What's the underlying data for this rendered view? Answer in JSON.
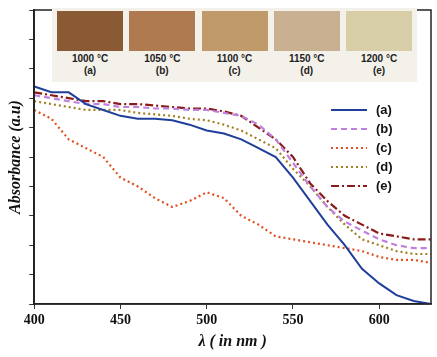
{
  "chart_data": {
    "type": "line",
    "x_label": "λ ( in nm )",
    "y_label": "Absorbance (a.u)",
    "x": [
      400,
      410,
      420,
      430,
      440,
      450,
      460,
      470,
      480,
      490,
      500,
      510,
      520,
      530,
      540,
      550,
      560,
      570,
      580,
      590,
      600,
      610,
      620,
      630
    ],
    "series": [
      {
        "name": "(a)",
        "color": "#1f3f9a",
        "line_style": "solid",
        "values": [
          0.74,
          0.72,
          0.72,
          0.68,
          0.66,
          0.64,
          0.63,
          0.63,
          0.625,
          0.61,
          0.59,
          0.58,
          0.56,
          0.53,
          0.5,
          0.43,
          0.35,
          0.27,
          0.2,
          0.12,
          0.07,
          0.03,
          0.01,
          0
        ]
      },
      {
        "name": "(b)",
        "color": "#c080e0",
        "line_style": "dashed",
        "values": [
          0.71,
          0.7,
          0.69,
          0.68,
          0.68,
          0.67,
          0.67,
          0.665,
          0.665,
          0.66,
          0.66,
          0.65,
          0.64,
          0.61,
          0.56,
          0.48,
          0.4,
          0.33,
          0.28,
          0.25,
          0.22,
          0.2,
          0.19,
          0.19
        ]
      },
      {
        "name": "(c)",
        "color": "#e05020",
        "line_style": "dotted",
        "values": [
          0.66,
          0.63,
          0.56,
          0.53,
          0.5,
          0.43,
          0.4,
          0.36,
          0.33,
          0.35,
          0.38,
          0.36,
          0.3,
          0.27,
          0.23,
          0.22,
          0.21,
          0.2,
          0.19,
          0.18,
          0.16,
          0.15,
          0.15,
          0.14
        ]
      },
      {
        "name": "(d)",
        "color": "#a08020",
        "line_style": "dotted",
        "values": [
          0.69,
          0.68,
          0.67,
          0.66,
          0.66,
          0.66,
          0.65,
          0.645,
          0.64,
          0.63,
          0.625,
          0.61,
          0.59,
          0.56,
          0.53,
          0.46,
          0.4,
          0.33,
          0.27,
          0.22,
          0.2,
          0.18,
          0.17,
          0.17
        ]
      },
      {
        "name": "(e)",
        "color": "#8b1a1a",
        "line_style": "dashdot",
        "values": [
          0.72,
          0.71,
          0.7,
          0.69,
          0.69,
          0.68,
          0.68,
          0.675,
          0.67,
          0.665,
          0.665,
          0.655,
          0.64,
          0.6,
          0.56,
          0.5,
          0.41,
          0.35,
          0.3,
          0.27,
          0.24,
          0.23,
          0.22,
          0.22
        ]
      }
    ],
    "xlim": [
      400,
      630
    ],
    "xticks": [
      400,
      450,
      500,
      550,
      600
    ],
    "ylim": [
      0,
      1
    ],
    "yticks": [
      0,
      0.1,
      0.2,
      0.3,
      0.4,
      0.5,
      0.6,
      0.7,
      0.8,
      0.9,
      1
    ],
    "tick_labels": "x",
    "grid": false,
    "legend": "right",
    "swatches": [
      {
        "temperature": "1000 °C",
        "label": "(a)",
        "color": "#8a5a35"
      },
      {
        "temperature": "1050 °C",
        "label": "(b)",
        "color": "#b07a50"
      },
      {
        "temperature": "1100 °C",
        "label": "(c)",
        "color": "#c09a6a"
      },
      {
        "temperature": "1150 °C",
        "label": "(d)",
        "color": "#c8b090"
      },
      {
        "temperature": "1200 °C",
        "label": "(e)",
        "color": "#d8cfa8"
      }
    ]
  }
}
